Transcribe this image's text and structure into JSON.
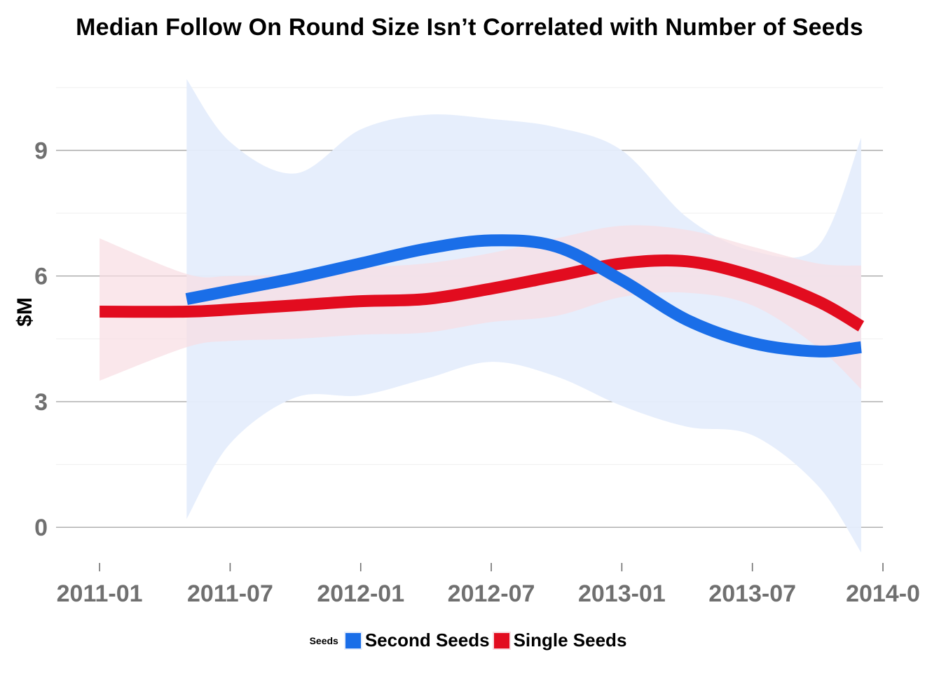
{
  "chart_data": {
    "type": "line",
    "title": "Median Follow On Round Size Isn’t Correlated with Number of Seeds",
    "xlabel": "",
    "ylabel": "$M",
    "x_ticks": [
      "2011-01",
      "2011-07",
      "2012-01",
      "2012-07",
      "2013-01",
      "2013-07",
      "2014-0"
    ],
    "y_ticks": [
      0,
      3,
      6,
      9
    ],
    "ylim": [
      -0.8,
      11
    ],
    "xlim": [
      "2010-11",
      "2014-01"
    ],
    "grid": true,
    "legend": {
      "title": "Seeds",
      "position": "bottom"
    },
    "series": [
      {
        "name": "Second Seeds",
        "color": "#1a6ee8",
        "band_color": "#e5edfc",
        "x": [
          "2011-05",
          "2011-07",
          "2011-10",
          "2012-01",
          "2012-04",
          "2012-07",
          "2012-10",
          "2013-01",
          "2013-04",
          "2013-07",
          "2013-10",
          "2013-12"
        ],
        "y": [
          5.45,
          5.65,
          5.95,
          6.3,
          6.65,
          6.85,
          6.7,
          5.9,
          4.95,
          4.4,
          4.2,
          4.3
        ],
        "lower": [
          0.2,
          2.0,
          3.1,
          3.15,
          3.55,
          3.95,
          3.6,
          2.9,
          2.4,
          2.2,
          1.0,
          -0.6
        ],
        "upper": [
          10.7,
          9.2,
          8.45,
          9.5,
          9.85,
          9.75,
          9.55,
          9.0,
          7.4,
          6.6,
          6.7,
          9.3
        ]
      },
      {
        "name": "Single Seeds",
        "color": "#e20c1f",
        "band_color": "#f8dde2",
        "x": [
          "2011-01",
          "2011-05",
          "2011-07",
          "2011-10",
          "2012-01",
          "2012-04",
          "2012-07",
          "2012-10",
          "2013-01",
          "2013-04",
          "2013-07",
          "2013-10",
          "2013-12"
        ],
        "y": [
          5.15,
          5.15,
          5.2,
          5.3,
          5.4,
          5.45,
          5.7,
          6.0,
          6.3,
          6.35,
          6.0,
          5.4,
          4.8
        ],
        "lower": [
          3.5,
          4.3,
          4.45,
          4.5,
          4.6,
          4.65,
          4.9,
          5.05,
          5.5,
          5.6,
          5.3,
          4.3,
          3.3
        ],
        "upper": [
          6.9,
          6.05,
          6.0,
          6.05,
          6.2,
          6.3,
          6.55,
          6.9,
          7.2,
          7.1,
          6.7,
          6.3,
          6.25
        ]
      }
    ]
  }
}
